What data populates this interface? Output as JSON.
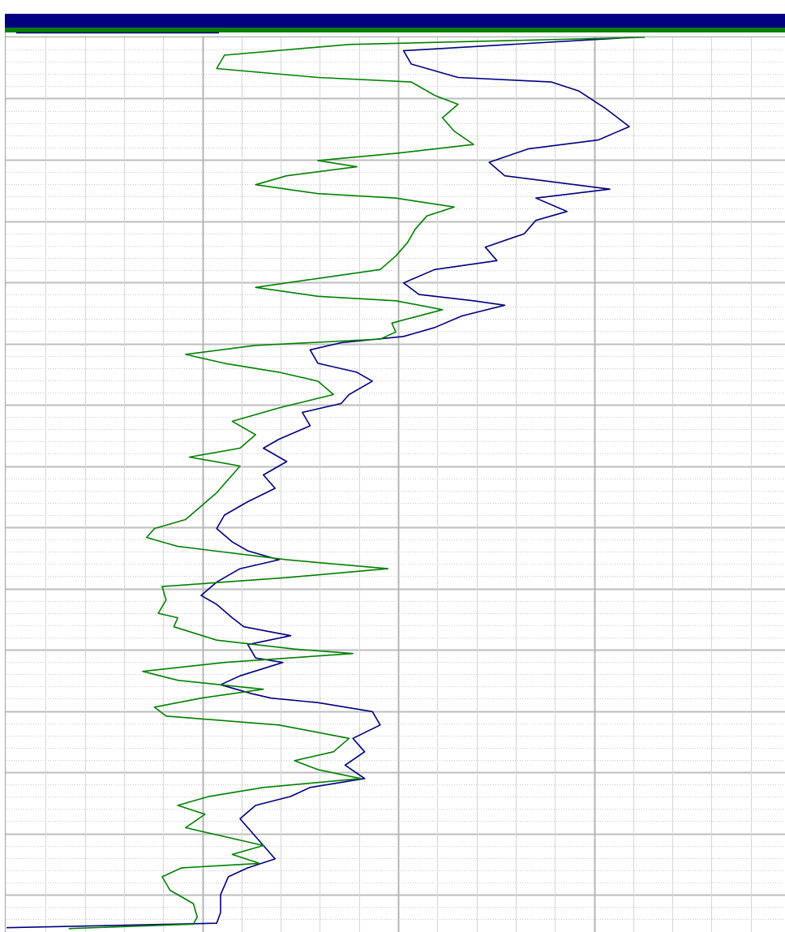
{
  "chart_data": {
    "type": "line",
    "orientation": "vertical-depth",
    "title": "",
    "xlabel": "",
    "ylabel": "",
    "xlim": [
      0,
      100
    ],
    "ylim": [
      0,
      100
    ],
    "grid": true,
    "header_colors": {
      "band": "#000080",
      "stripe": "#008000"
    },
    "series": [
      {
        "color": "#000080",
        "points": [
          [
            80.5,
            0.0
          ],
          [
            51.0,
            1.5
          ],
          [
            52.0,
            3.0
          ],
          [
            58.0,
            4.5
          ],
          [
            70.0,
            5.0
          ],
          [
            73.5,
            6.0
          ],
          [
            77.0,
            8.0
          ],
          [
            80.0,
            10.0
          ],
          [
            76.0,
            11.5
          ],
          [
            67.0,
            12.5
          ],
          [
            62.0,
            14.0
          ],
          [
            64.0,
            15.5
          ],
          [
            73.0,
            16.5
          ],
          [
            77.5,
            17.0
          ],
          [
            68.0,
            18.0
          ],
          [
            72.0,
            19.5
          ],
          [
            68.0,
            20.5
          ],
          [
            66.5,
            22.0
          ],
          [
            61.5,
            23.5
          ],
          [
            63.0,
            25.0
          ],
          [
            55.0,
            26.0
          ],
          [
            51.0,
            27.5
          ],
          [
            53.0,
            28.8
          ],
          [
            60.0,
            29.5
          ],
          [
            64.0,
            30.0
          ],
          [
            58.5,
            31.2
          ],
          [
            55.0,
            32.5
          ],
          [
            51.0,
            33.5
          ],
          [
            43.0,
            34.2
          ],
          [
            39.0,
            35.0
          ],
          [
            40.0,
            36.5
          ],
          [
            45.0,
            37.5
          ],
          [
            47.0,
            38.5
          ],
          [
            44.0,
            40.0
          ],
          [
            43.0,
            41.0
          ],
          [
            38.0,
            42.0
          ],
          [
            39.0,
            43.5
          ],
          [
            35.0,
            45.0
          ],
          [
            33.0,
            46.0
          ],
          [
            36.0,
            47.5
          ],
          [
            33.0,
            49.0
          ],
          [
            34.5,
            50.5
          ],
          [
            31.0,
            52.0
          ],
          [
            28.0,
            53.5
          ],
          [
            27.0,
            55.0
          ],
          [
            29.0,
            56.5
          ],
          [
            31.0,
            57.5
          ],
          [
            35.0,
            58.5
          ],
          [
            30.0,
            59.5
          ],
          [
            27.0,
            61.0
          ],
          [
            25.0,
            62.5
          ],
          [
            27.0,
            63.5
          ],
          [
            29.0,
            65.0
          ],
          [
            30.5,
            66.0
          ],
          [
            36.5,
            67.0
          ],
          [
            31.0,
            68.0
          ],
          [
            32.0,
            69.5
          ],
          [
            35.5,
            70.0
          ],
          [
            30.0,
            71.5
          ],
          [
            27.5,
            72.5
          ],
          [
            31.5,
            73.5
          ],
          [
            34.0,
            74.0
          ],
          [
            40.0,
            74.5
          ],
          [
            47.0,
            75.5
          ],
          [
            48.0,
            77.0
          ],
          [
            44.5,
            78.5
          ],
          [
            46.0,
            80.0
          ],
          [
            43.5,
            81.5
          ],
          [
            46.0,
            83.0
          ],
          [
            39.0,
            84.0
          ],
          [
            36.5,
            85.0
          ],
          [
            32.0,
            86.0
          ],
          [
            30.0,
            87.5
          ],
          [
            31.5,
            89.0
          ],
          [
            33.0,
            90.5
          ],
          [
            34.5,
            92.0
          ],
          [
            31.0,
            93.0
          ],
          [
            28.5,
            94.0
          ],
          [
            27.5,
            96.0
          ],
          [
            27.5,
            98.0
          ],
          [
            27.0,
            99.2
          ],
          [
            0.0,
            99.7
          ]
        ]
      },
      {
        "color": "#008000",
        "points": [
          [
            82.0,
            0.0
          ],
          [
            44.0,
            0.8
          ],
          [
            28.0,
            2.0
          ],
          [
            27.0,
            3.5
          ],
          [
            40.0,
            4.5
          ],
          [
            52.0,
            5.0
          ],
          [
            55.0,
            6.5
          ],
          [
            58.0,
            7.5
          ],
          [
            56.0,
            9.0
          ],
          [
            57.5,
            10.5
          ],
          [
            60.0,
            12.0
          ],
          [
            50.0,
            13.0
          ],
          [
            40.0,
            13.8
          ],
          [
            45.0,
            14.5
          ],
          [
            36.0,
            15.5
          ],
          [
            32.0,
            16.5
          ],
          [
            40.0,
            17.5
          ],
          [
            50.0,
            18.0
          ],
          [
            57.5,
            19.0
          ],
          [
            54.0,
            20.0
          ],
          [
            52.5,
            21.5
          ],
          [
            51.5,
            23.0
          ],
          [
            50.0,
            24.5
          ],
          [
            48.0,
            26.0
          ],
          [
            40.0,
            27.0
          ],
          [
            32.0,
            28.0
          ],
          [
            40.0,
            29.0
          ],
          [
            50.0,
            29.5
          ],
          [
            56.0,
            30.5
          ],
          [
            49.5,
            32.0
          ],
          [
            50.0,
            33.0
          ],
          [
            48.0,
            33.8
          ],
          [
            32.0,
            34.5
          ],
          [
            23.0,
            35.5
          ],
          [
            28.0,
            36.5
          ],
          [
            35.0,
            37.5
          ],
          [
            40.0,
            38.5
          ],
          [
            42.0,
            40.0
          ],
          [
            35.0,
            41.5
          ],
          [
            29.0,
            43.0
          ],
          [
            32.0,
            44.5
          ],
          [
            30.0,
            46.0
          ],
          [
            23.5,
            47.0
          ],
          [
            30.0,
            48.0
          ],
          [
            28.5,
            49.5
          ],
          [
            27.0,
            51.0
          ],
          [
            25.0,
            52.5
          ],
          [
            23.0,
            54.0
          ],
          [
            19.0,
            55.0
          ],
          [
            18.0,
            56.0
          ],
          [
            22.0,
            57.0
          ],
          [
            36.0,
            58.5
          ],
          [
            49.0,
            59.5
          ],
          [
            36.0,
            60.5
          ],
          [
            20.0,
            61.5
          ],
          [
            20.5,
            63.0
          ],
          [
            19.5,
            64.5
          ],
          [
            22.0,
            65.0
          ],
          [
            21.5,
            66.0
          ],
          [
            27.0,
            67.5
          ],
          [
            37.0,
            68.5
          ],
          [
            44.5,
            69.0
          ],
          [
            28.0,
            70.0
          ],
          [
            17.5,
            71.0
          ],
          [
            22.0,
            72.0
          ],
          [
            33.0,
            73.0
          ],
          [
            25.0,
            74.0
          ],
          [
            19.0,
            75.0
          ],
          [
            20.5,
            76.0
          ],
          [
            35.0,
            77.0
          ],
          [
            44.0,
            78.5
          ],
          [
            42.0,
            80.0
          ],
          [
            37.0,
            81.0
          ],
          [
            40.0,
            82.0
          ],
          [
            45.5,
            83.0
          ],
          [
            33.0,
            84.0
          ],
          [
            26.0,
            85.0
          ],
          [
            22.0,
            86.0
          ],
          [
            25.5,
            87.0
          ],
          [
            23.0,
            88.5
          ],
          [
            28.0,
            89.5
          ],
          [
            33.0,
            90.5
          ],
          [
            29.0,
            91.5
          ],
          [
            32.5,
            92.5
          ],
          [
            22.5,
            93.0
          ],
          [
            20.0,
            94.0
          ],
          [
            21.0,
            95.5
          ],
          [
            24.0,
            97.0
          ],
          [
            24.5,
            98.5
          ],
          [
            24.0,
            99.3
          ],
          [
            8.0,
            99.8
          ]
        ]
      }
    ]
  }
}
